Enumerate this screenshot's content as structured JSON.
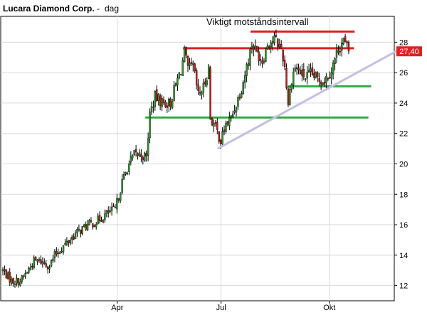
{
  "chart_data": {
    "type": "candlestick",
    "title": "Lucara Diamond Corp.",
    "subtitle_separator": "-",
    "subtitle": "dag",
    "annotation": "Viktigt motståndsintervall",
    "last_price_label": "27,40",
    "last_price": 27.4,
    "ylim": [
      11,
      29.7
    ],
    "yticks": [
      12,
      14,
      16,
      18,
      20,
      22,
      24,
      26,
      28
    ],
    "xlim": [
      0,
      100
    ],
    "xticks": [
      {
        "label": "Apr",
        "x": 33.1
      },
      {
        "label": "Jul",
        "x": 63.1
      },
      {
        "label": "Okt",
        "x": 94.4
      }
    ],
    "grid": true,
    "colors": {
      "up": "#2e9a2e",
      "down": "#d11a1a",
      "resistance": "#dd2222",
      "support": "#33aa44",
      "trend": "#c5bde2",
      "price_label_bg": "#dd2222",
      "grid": "#d9d9d9",
      "axis": "#000000"
    },
    "horizontal_lines": [
      {
        "kind": "resistance",
        "y": 28.7,
        "x_start": 71.6,
        "x_end": 101.7
      },
      {
        "kind": "resistance",
        "y": 27.6,
        "x_start": 52.1,
        "x_end": 101.5
      },
      {
        "kind": "support",
        "y": 23.05,
        "x_start": 41.2,
        "x_end": 73.8
      },
      {
        "kind": "support",
        "y": 23.05,
        "x_start": 73.8,
        "x_end": 105.7
      },
      {
        "kind": "support",
        "y": 25.1,
        "x_start": 82.6,
        "x_end": 106.5
      }
    ],
    "trendline": {
      "x1": 62.1,
      "y1": 21.0,
      "x2": 115.3,
      "y2": 27.6
    },
    "price_anchors": [
      [
        0.0,
        13.0
      ],
      [
        2.5,
        12.3
      ],
      [
        5.0,
        12.3
      ],
      [
        7.0,
        12.9
      ],
      [
        9.0,
        13.6
      ],
      [
        11.0,
        13.6
      ],
      [
        13.5,
        13.3
      ],
      [
        15.0,
        14.0
      ],
      [
        18.0,
        14.7
      ],
      [
        21.0,
        15.4
      ],
      [
        24.0,
        15.9
      ],
      [
        27.0,
        16.2
      ],
      [
        30.5,
        16.8
      ],
      [
        32.5,
        17.0
      ],
      [
        34.5,
        18.8
      ],
      [
        36.5,
        20.0
      ],
      [
        38.0,
        20.6
      ],
      [
        40.0,
        20.6
      ],
      [
        41.5,
        20.4
      ],
      [
        42.5,
        23.3
      ],
      [
        44.0,
        24.4
      ],
      [
        46.5,
        24.0
      ],
      [
        48.5,
        24.0
      ],
      [
        50.0,
        25.2
      ],
      [
        51.5,
        26.2
      ],
      [
        52.5,
        27.3
      ],
      [
        53.5,
        26.2
      ],
      [
        55.0,
        26.4
      ],
      [
        56.5,
        24.5
      ],
      [
        58.0,
        25.0
      ],
      [
        59.5,
        26.3
      ],
      [
        60.0,
        23.0
      ],
      [
        61.5,
        22.4
      ],
      [
        63.0,
        21.5
      ],
      [
        64.5,
        22.6
      ],
      [
        66.0,
        23.0
      ],
      [
        67.5,
        24.0
      ],
      [
        69.0,
        25.0
      ],
      [
        70.5,
        26.4
      ],
      [
        72.0,
        27.9
      ],
      [
        73.5,
        27.3
      ],
      [
        75.0,
        26.8
      ],
      [
        76.5,
        27.9
      ],
      [
        78.5,
        28.2
      ],
      [
        80.5,
        27.6
      ],
      [
        81.5,
        26.4
      ],
      [
        82.5,
        24.0
      ],
      [
        83.5,
        25.6
      ],
      [
        84.5,
        26.4
      ],
      [
        86.0,
        26.0
      ],
      [
        87.5,
        25.7
      ],
      [
        89.0,
        25.9
      ],
      [
        91.0,
        25.6
      ],
      [
        93.0,
        25.5
      ],
      [
        95.0,
        26.2
      ],
      [
        97.0,
        27.6
      ],
      [
        98.5,
        28.1
      ],
      [
        100.0,
        27.4
      ]
    ]
  }
}
